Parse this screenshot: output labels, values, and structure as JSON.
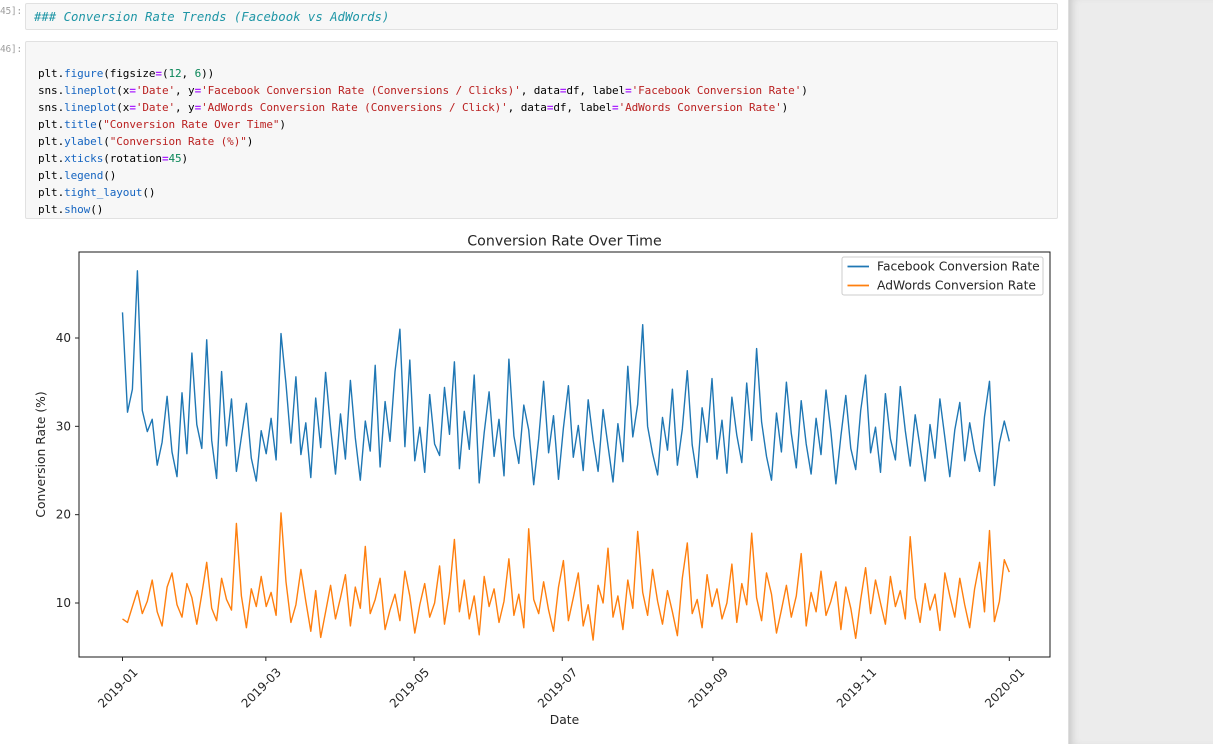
{
  "notebook": {
    "markdown_cell": {
      "prompt": "45]:",
      "source": "### Conversion Rate Trends (Facebook vs AdWords)"
    },
    "code_cell": {
      "prompt": "46]:",
      "lines": [
        [],
        [
          [
            "p",
            "plt."
          ],
          [
            "f",
            "figure"
          ],
          [
            "p",
            "(figsize"
          ],
          [
            "o",
            "="
          ],
          [
            "p",
            "("
          ],
          [
            "n",
            "12"
          ],
          [
            "p",
            ", "
          ],
          [
            "n",
            "6"
          ],
          [
            "p",
            "))"
          ]
        ],
        [
          [
            "p",
            "sns."
          ],
          [
            "f",
            "lineplot"
          ],
          [
            "p",
            "(x"
          ],
          [
            "o",
            "="
          ],
          [
            "s",
            "'Date'"
          ],
          [
            "p",
            ", y"
          ],
          [
            "o",
            "="
          ],
          [
            "s",
            "'Facebook Conversion Rate (Conversions / Clicks)'"
          ],
          [
            "p",
            ", data"
          ],
          [
            "o",
            "="
          ],
          [
            "p",
            "df, label"
          ],
          [
            "o",
            "="
          ],
          [
            "s",
            "'Facebook Conversion Rate'"
          ],
          [
            "p",
            ")"
          ]
        ],
        [
          [
            "p",
            "sns."
          ],
          [
            "f",
            "lineplot"
          ],
          [
            "p",
            "(x"
          ],
          [
            "o",
            "="
          ],
          [
            "s",
            "'Date'"
          ],
          [
            "p",
            ", y"
          ],
          [
            "o",
            "="
          ],
          [
            "s",
            "'AdWords Conversion Rate (Conversions / Click)'"
          ],
          [
            "p",
            ", data"
          ],
          [
            "o",
            "="
          ],
          [
            "p",
            "df, label"
          ],
          [
            "o",
            "="
          ],
          [
            "s",
            "'AdWords Conversion Rate'"
          ],
          [
            "p",
            ")"
          ]
        ],
        [
          [
            "p",
            "plt."
          ],
          [
            "f",
            "title"
          ],
          [
            "p",
            "("
          ],
          [
            "s",
            "\"Conversion Rate Over Time\""
          ],
          [
            "p",
            ")"
          ]
        ],
        [
          [
            "p",
            "plt."
          ],
          [
            "f",
            "ylabel"
          ],
          [
            "p",
            "("
          ],
          [
            "s",
            "\"Conversion Rate (%)\""
          ],
          [
            "p",
            ")"
          ]
        ],
        [
          [
            "p",
            "plt."
          ],
          [
            "f",
            "xticks"
          ],
          [
            "p",
            "(rotation"
          ],
          [
            "o",
            "="
          ],
          [
            "n",
            "45"
          ],
          [
            "p",
            ")"
          ]
        ],
        [
          [
            "p",
            "plt."
          ],
          [
            "f",
            "legend"
          ],
          [
            "p",
            "()"
          ]
        ],
        [
          [
            "p",
            "plt."
          ],
          [
            "f",
            "tight_layout"
          ],
          [
            "p",
            "()"
          ]
        ],
        [
          [
            "p",
            "plt."
          ],
          [
            "f",
            "show"
          ],
          [
            "p",
            "()"
          ]
        ]
      ]
    }
  },
  "chart_data": {
    "type": "line",
    "title": "Conversion Rate Over Time",
    "xlabel": "Date",
    "ylabel": "Conversion Rate (%)",
    "x_tick_labels": [
      "2019-01",
      "2019-03",
      "2019-05",
      "2019-07",
      "2019-09",
      "2019-11",
      "2020-01"
    ],
    "y_tick_labels": [
      40,
      30,
      20,
      10
    ],
    "ylim": [
      3.9,
      49.7
    ],
    "xlim": [
      "2019-01-01",
      "2020-01-01"
    ],
    "grid": false,
    "legend_position": "upper right",
    "series": [
      {
        "name": "Facebook Conversion Rate",
        "color": "#1f77b4",
        "values": [
          42.9,
          31.6,
          34.2,
          47.6,
          31.8,
          29.4,
          30.8,
          25.6,
          28.2,
          33.4,
          27.1,
          24.3,
          33.8,
          26.9,
          38.3,
          30.2,
          27.5,
          39.8,
          28.4,
          24.1,
          36.2,
          27.8,
          33.1,
          24.9,
          28.8,
          32.6,
          26.4,
          23.8,
          29.5,
          26.9,
          30.9,
          26.2,
          40.5,
          34.8,
          28.1,
          35.6,
          26.8,
          30.4,
          24.2,
          33.2,
          27.6,
          36.1,
          29.8,
          24.6,
          31.4,
          26.3,
          35.2,
          28.7,
          23.9,
          30.6,
          27.2,
          36.9,
          25.4,
          32.8,
          28.3,
          36.2,
          41.0,
          27.7,
          37.5,
          26.1,
          29.9,
          24.8,
          33.6,
          28.0,
          26.7,
          34.4,
          29.1,
          37.3,
          25.2,
          31.7,
          27.4,
          35.8,
          23.6,
          29.3,
          33.9,
          26.6,
          30.8,
          24.4,
          37.6,
          28.9,
          25.8,
          32.4,
          29.6,
          23.4,
          28.6,
          35.1,
          27.0,
          31.2,
          24.0,
          29.8,
          34.6,
          26.5,
          30.1,
          25.0,
          33.0,
          28.5,
          24.9,
          31.9,
          27.8,
          23.7,
          30.3,
          26.0,
          36.8,
          28.8,
          32.5,
          41.5,
          30.0,
          26.9,
          24.5,
          31.0,
          27.3,
          34.2,
          25.6,
          29.7,
          36.3,
          27.9,
          24.2,
          32.1,
          28.2,
          35.4,
          26.3,
          30.7,
          24.7,
          33.3,
          29.0,
          25.9,
          34.9,
          28.4,
          38.8,
          30.5,
          26.6,
          23.9,
          31.5,
          27.1,
          35.0,
          29.2,
          25.3,
          32.9,
          28.0,
          24.6,
          30.9,
          26.8,
          34.1,
          29.4,
          23.5,
          28.9,
          33.5,
          27.5,
          25.1,
          31.8,
          35.8,
          27.0,
          29.9,
          24.8,
          33.7,
          28.6,
          26.2,
          34.5,
          29.5,
          25.5,
          31.3,
          27.6,
          23.8,
          30.2,
          26.4,
          33.1,
          28.7,
          24.3,
          29.6,
          32.7,
          26.1,
          30.4,
          27.2,
          24.9,
          31.1,
          35.1,
          23.3,
          28.1,
          30.6,
          28.3
        ]
      },
      {
        "name": "AdWords Conversion Rate",
        "color": "#ff7f0e",
        "values": [
          8.2,
          7.8,
          9.6,
          11.4,
          8.8,
          10.2,
          12.6,
          9.0,
          7.4,
          11.8,
          13.4,
          9.8,
          8.4,
          12.2,
          10.6,
          7.6,
          11.0,
          14.6,
          9.4,
          8.0,
          12.8,
          10.4,
          9.2,
          19.0,
          10.8,
          7.2,
          11.6,
          9.6,
          13.0,
          9.6,
          11.2,
          8.6,
          20.2,
          12.4,
          7.8,
          9.8,
          13.8,
          10.2,
          6.8,
          11.4,
          6.1,
          9.0,
          12.0,
          8.2,
          10.6,
          13.2,
          7.4,
          11.8,
          9.4,
          16.4,
          8.8,
          10.4,
          12.8,
          7.0,
          9.2,
          11.0,
          8.0,
          13.6,
          10.8,
          6.6,
          9.8,
          12.2,
          8.4,
          10.0,
          14.2,
          7.6,
          11.2,
          17.2,
          9.0,
          12.6,
          8.2,
          10.8,
          6.4,
          13.0,
          9.6,
          11.6,
          7.8,
          10.2,
          15.0,
          8.6,
          11.0,
          7.2,
          18.4,
          10.4,
          8.8,
          12.4,
          9.2,
          6.8,
          11.8,
          14.8,
          8.0,
          10.6,
          13.4,
          7.4,
          9.8,
          5.8,
          12.0,
          10.0,
          16.2,
          8.4,
          10.8,
          7.0,
          12.6,
          9.4,
          18.1,
          11.2,
          8.6,
          13.8,
          10.2,
          7.6,
          11.4,
          9.0,
          6.3,
          12.8,
          16.8,
          8.8,
          10.4,
          7.2,
          13.2,
          9.6,
          11.6,
          8.2,
          10.0,
          14.4,
          7.8,
          12.2,
          9.8,
          17.9,
          10.6,
          8.0,
          13.4,
          11.0,
          6.6,
          9.2,
          12.0,
          8.4,
          10.8,
          15.6,
          7.4,
          11.2,
          9.0,
          13.6,
          8.6,
          10.2,
          12.4,
          7.0,
          11.8,
          9.4,
          6.0,
          10.4,
          14.0,
          8.8,
          12.6,
          10.0,
          7.6,
          13.0,
          9.6,
          11.4,
          8.2,
          17.5,
          10.6,
          7.8,
          12.2,
          9.2,
          11.0,
          6.9,
          13.4,
          10.8,
          8.4,
          12.8,
          9.8,
          7.2,
          11.6,
          14.6,
          9.0,
          18.2,
          7.9,
          10.2,
          14.9,
          13.5
        ]
      }
    ]
  }
}
